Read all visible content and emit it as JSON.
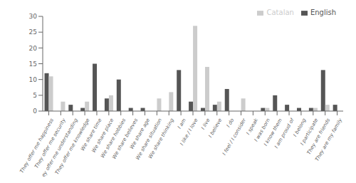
{
  "chart_data": {
    "type": "bar",
    "categories": [
      "They offer me happiness",
      "They offer me security",
      "They offer me understanding",
      "They offer me knowledge",
      "We share time",
      "We share place",
      "We share hobbies",
      "We share believes",
      "We share age",
      "We share situation",
      "We share thinking",
      "I am",
      "I like / I love",
      "I live",
      "I believe",
      "I do",
      "I feel / I consider",
      "I speak",
      "I was born",
      "I know them",
      "I am proud of",
      "I belong",
      "I participate",
      "They are friends",
      "They are my family"
    ],
    "series": [
      {
        "name": "English",
        "color": "#555555",
        "values": [
          12,
          0,
          2,
          1,
          15,
          4,
          10,
          1,
          1,
          0,
          0,
          13,
          3,
          1,
          2,
          7,
          0,
          0,
          1,
          5,
          2,
          1,
          1,
          13,
          2
        ]
      },
      {
        "name": "Catalan",
        "color": "#cccccc",
        "values": [
          11,
          3,
          0,
          3,
          0,
          5,
          0,
          0,
          0,
          4,
          6,
          0,
          27,
          14,
          3,
          0,
          4,
          0,
          1,
          0,
          0,
          0,
          1,
          2,
          0
        ]
      }
    ],
    "ylim": [
      0,
      30
    ],
    "yticks": [
      0,
      5,
      10,
      15,
      20,
      25,
      30
    ],
    "legend": "upper right",
    "grid": false
  }
}
